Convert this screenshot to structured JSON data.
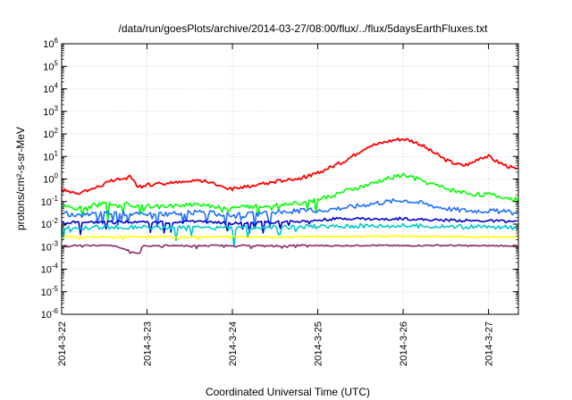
{
  "chart_data": {
    "type": "line",
    "title": "/data/run/goesPlots/archive/2014-03-27/08:00/flux/../flux/5daysEarthFluxes.txt",
    "xlabel": "Coordinated Universal Time (UTC)",
    "ylabel": "protons/cm²-s-sr-MeV",
    "yscale": "log",
    "ylim_exponent": [
      -6,
      6
    ],
    "y_tick_base": "10",
    "y_tick_exponents": [
      "-6",
      "-5",
      "-4",
      "-3",
      "-2",
      "-1",
      "0",
      "1",
      "2",
      "3",
      "4",
      "5",
      "6"
    ],
    "x_tick_labels": [
      "2014-3-22",
      "2014-3-23",
      "2014-3-24",
      "2014-3-25",
      "2014-3-26",
      "2014-3-27"
    ],
    "xlim_days": [
      0,
      5.35
    ],
    "grid": true,
    "legend": "none",
    "series": [
      {
        "color": "#ff0000",
        "points": [
          [
            0.0,
            0.32
          ],
          [
            0.2,
            0.25
          ],
          [
            0.4,
            0.42
          ],
          [
            0.6,
            0.85
          ],
          [
            0.8,
            1.2
          ],
          [
            0.9,
            0.45
          ],
          [
            1.0,
            0.55
          ],
          [
            1.2,
            0.65
          ],
          [
            1.4,
            0.7
          ],
          [
            1.6,
            0.9
          ],
          [
            1.8,
            0.6
          ],
          [
            2.0,
            0.35
          ],
          [
            2.2,
            0.5
          ],
          [
            2.4,
            0.65
          ],
          [
            2.6,
            0.9
          ],
          [
            2.8,
            1.1
          ],
          [
            3.0,
            1.8
          ],
          [
            3.1,
            2.8
          ],
          [
            3.2,
            4.0
          ],
          [
            3.3,
            6.0
          ],
          [
            3.4,
            10.0
          ],
          [
            3.5,
            18.0
          ],
          [
            3.6,
            30.0
          ],
          [
            3.7,
            35.0
          ],
          [
            3.8,
            45.0
          ],
          [
            3.9,
            55.0
          ],
          [
            4.0,
            60.0
          ],
          [
            4.1,
            50.0
          ],
          [
            4.2,
            35.0
          ],
          [
            4.3,
            20.0
          ],
          [
            4.4,
            12.0
          ],
          [
            4.5,
            7.0
          ],
          [
            4.6,
            5.0
          ],
          [
            4.7,
            4.0
          ],
          [
            4.8,
            5.0
          ],
          [
            4.9,
            9.0
          ],
          [
            5.0,
            10.0
          ],
          [
            5.1,
            6.0
          ],
          [
            5.2,
            4.0
          ],
          [
            5.35,
            2.5
          ]
        ]
      },
      {
        "color": "#00ff00",
        "points": [
          [
            0.0,
            0.06
          ],
          [
            0.2,
            0.05
          ],
          [
            0.4,
            0.07
          ],
          [
            0.6,
            0.08
          ],
          [
            0.8,
            0.07
          ],
          [
            1.0,
            0.06
          ],
          [
            1.2,
            0.06
          ],
          [
            1.4,
            0.07
          ],
          [
            1.6,
            0.08
          ],
          [
            1.8,
            0.06
          ],
          [
            2.0,
            0.05
          ],
          [
            2.2,
            0.06
          ],
          [
            2.4,
            0.07
          ],
          [
            2.6,
            0.08
          ],
          [
            2.8,
            0.09
          ],
          [
            3.0,
            0.12
          ],
          [
            3.2,
            0.2
          ],
          [
            3.4,
            0.35
          ],
          [
            3.6,
            0.55
          ],
          [
            3.8,
            1.0
          ],
          [
            4.0,
            1.5
          ],
          [
            4.1,
            1.2
          ],
          [
            4.2,
            0.9
          ],
          [
            4.4,
            0.5
          ],
          [
            4.6,
            0.3
          ],
          [
            4.8,
            0.22
          ],
          [
            5.0,
            0.2
          ],
          [
            5.2,
            0.15
          ],
          [
            5.35,
            0.12
          ]
        ]
      },
      {
        "color": "#1e6fff",
        "points": [
          [
            0.0,
            0.03
          ],
          [
            0.2,
            0.025
          ],
          [
            0.4,
            0.03
          ],
          [
            0.6,
            0.035
          ],
          [
            0.8,
            0.03
          ],
          [
            1.0,
            0.025
          ],
          [
            1.2,
            0.028
          ],
          [
            1.4,
            0.03
          ],
          [
            1.6,
            0.035
          ],
          [
            1.8,
            0.03
          ],
          [
            2.0,
            0.025
          ],
          [
            2.2,
            0.028
          ],
          [
            2.4,
            0.03
          ],
          [
            2.6,
            0.035
          ],
          [
            2.8,
            0.04
          ],
          [
            3.0,
            0.04
          ],
          [
            3.2,
            0.05
          ],
          [
            3.4,
            0.06
          ],
          [
            3.6,
            0.08
          ],
          [
            3.8,
            0.1
          ],
          [
            4.0,
            0.12
          ],
          [
            4.2,
            0.09
          ],
          [
            4.4,
            0.06
          ],
          [
            4.6,
            0.045
          ],
          [
            4.8,
            0.04
          ],
          [
            5.0,
            0.04
          ],
          [
            5.2,
            0.035
          ],
          [
            5.35,
            0.03
          ]
        ]
      },
      {
        "color": "#0000cd",
        "points": [
          [
            0.0,
            0.012
          ],
          [
            0.4,
            0.012
          ],
          [
            0.8,
            0.013
          ],
          [
            1.2,
            0.012
          ],
          [
            1.6,
            0.013
          ],
          [
            2.0,
            0.011
          ],
          [
            2.4,
            0.012
          ],
          [
            2.8,
            0.013
          ],
          [
            3.0,
            0.015
          ],
          [
            3.2,
            0.017
          ],
          [
            3.4,
            0.018
          ],
          [
            3.6,
            0.017
          ],
          [
            3.8,
            0.016
          ],
          [
            4.0,
            0.018
          ],
          [
            4.2,
            0.016
          ],
          [
            4.4,
            0.015
          ],
          [
            4.6,
            0.015
          ],
          [
            4.8,
            0.014
          ],
          [
            5.0,
            0.014
          ],
          [
            5.35,
            0.013
          ]
        ]
      },
      {
        "color": "#00c8c8",
        "points": [
          [
            0.0,
            0.007
          ],
          [
            0.4,
            0.007
          ],
          [
            0.8,
            0.0075
          ],
          [
            1.2,
            0.007
          ],
          [
            1.6,
            0.0075
          ],
          [
            2.0,
            0.0065
          ],
          [
            2.4,
            0.007
          ],
          [
            2.8,
            0.0075
          ],
          [
            3.2,
            0.008
          ],
          [
            3.6,
            0.0085
          ],
          [
            4.0,
            0.0085
          ],
          [
            4.4,
            0.008
          ],
          [
            4.8,
            0.0075
          ],
          [
            5.35,
            0.007
          ]
        ]
      },
      {
        "color": "#ffff00",
        "points": [
          [
            0.0,
            0.0028
          ],
          [
            0.5,
            0.0027
          ],
          [
            1.0,
            0.0028
          ],
          [
            1.5,
            0.0027
          ],
          [
            2.0,
            0.0028
          ],
          [
            2.5,
            0.0027
          ],
          [
            3.0,
            0.0028
          ],
          [
            3.5,
            0.0028
          ],
          [
            4.0,
            0.0029
          ],
          [
            4.5,
            0.0028
          ],
          [
            5.0,
            0.0027
          ],
          [
            5.35,
            0.0027
          ]
        ]
      },
      {
        "color": "#8b2a6b",
        "points": [
          [
            0.0,
            0.0011
          ],
          [
            0.3,
            0.00115
          ],
          [
            0.6,
            0.0011
          ],
          [
            0.9,
            0.0005
          ],
          [
            0.95,
            0.0011
          ],
          [
            1.3,
            0.00115
          ],
          [
            1.6,
            0.0011
          ],
          [
            2.0,
            0.00115
          ],
          [
            2.4,
            0.0011
          ],
          [
            2.8,
            0.00115
          ],
          [
            3.2,
            0.0011
          ],
          [
            3.6,
            0.00115
          ],
          [
            4.0,
            0.0011
          ],
          [
            4.4,
            0.00115
          ],
          [
            4.8,
            0.0011
          ],
          [
            5.35,
            0.0011
          ]
        ]
      }
    ]
  }
}
